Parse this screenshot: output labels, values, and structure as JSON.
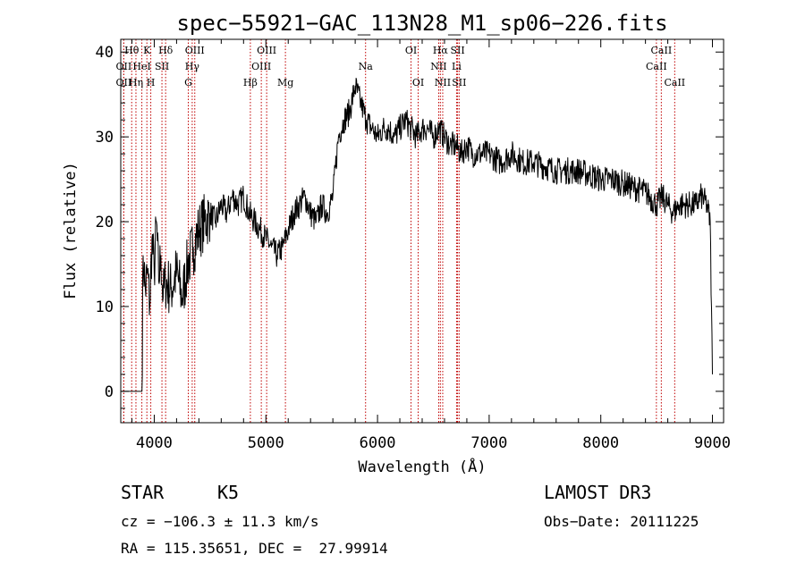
{
  "chart_data": {
    "type": "line",
    "title": "spec−55921−GAC_113N28_M1_sp06−226.fits",
    "xlabel": "Wavelength (Å)",
    "ylabel": "Flux (relative)",
    "xlim": [
      3700,
      9100
    ],
    "ylim": [
      -3.7,
      41.5
    ],
    "xticks": [
      4000,
      5000,
      6000,
      7000,
      8000,
      9000
    ],
    "yticks": [
      0,
      10,
      20,
      30,
      40
    ],
    "grid": false,
    "series": [
      {
        "name": "flux",
        "x": [
          3700,
          3890,
          3900,
          3920,
          3940,
          3960,
          3980,
          4000,
          4020,
          4040,
          4060,
          4080,
          4100,
          4150,
          4200,
          4250,
          4300,
          4350,
          4400,
          4450,
          4500,
          4550,
          4600,
          4650,
          4700,
          4750,
          4800,
          4850,
          4900,
          4950,
          5000,
          5050,
          5100,
          5150,
          5200,
          5250,
          5300,
          5350,
          5400,
          5450,
          5500,
          5550,
          5600,
          5650,
          5700,
          5750,
          5800,
          5850,
          5900,
          5950,
          6000,
          6050,
          6100,
          6150,
          6200,
          6250,
          6300,
          6350,
          6400,
          6450,
          6500,
          6550,
          6600,
          6650,
          6700,
          6750,
          6800,
          6850,
          6900,
          7000,
          7100,
          7200,
          7300,
          7400,
          7500,
          7600,
          7700,
          7800,
          7900,
          8000,
          8100,
          8200,
          8300,
          8400,
          8500,
          8550,
          8600,
          8650,
          8700,
          8750,
          8800,
          8850,
          8900,
          8950,
          8980,
          9000
        ],
        "y": [
          0,
          0,
          16,
          12,
          14,
          10,
          18,
          14,
          20,
          13,
          16,
          11,
          13,
          12,
          14,
          11,
          15,
          17,
          19,
          20,
          21,
          20,
          22,
          21,
          23,
          22,
          23,
          21,
          20,
          19,
          18,
          17,
          16,
          17,
          19,
          21,
          22,
          23,
          21,
          20,
          22,
          21,
          23,
          30,
          32,
          33,
          36,
          34,
          32,
          31,
          30,
          31,
          31,
          30,
          31,
          32,
          31,
          30,
          31,
          31,
          30,
          31,
          30,
          29,
          29,
          28,
          29,
          28,
          28,
          28,
          27,
          28,
          27,
          27,
          26.5,
          26,
          26,
          26,
          25.5,
          25,
          25,
          24.5,
          24,
          23.5,
          22,
          23,
          22,
          21,
          22,
          22,
          22,
          22,
          23,
          22,
          20,
          2
        ]
      }
    ],
    "lines": [
      {
        "label": "Hθ",
        "x": 3798,
        "row": 0
      },
      {
        "label": "OII",
        "x": 3727,
        "row": 1
      },
      {
        "label": "OII",
        "x": 3727,
        "row": 2
      },
      {
        "label": "Hη",
        "x": 3836,
        "row": 2
      },
      {
        "label": "HeI",
        "x": 3889,
        "row": 1
      },
      {
        "label": "K",
        "x": 3934,
        "row": 0
      },
      {
        "label": "H",
        "x": 3969,
        "row": 2
      },
      {
        "label": "SII",
        "x": 4069,
        "row": 1
      },
      {
        "label": "Hδ",
        "x": 4102,
        "row": 0
      },
      {
        "label": "OIII",
        "x": 4363,
        "row": 0
      },
      {
        "label": "Hγ",
        "x": 4340,
        "row": 1
      },
      {
        "label": "G",
        "x": 4305,
        "row": 2
      },
      {
        "label": "Hβ",
        "x": 4861,
        "row": 2
      },
      {
        "label": "OIII",
        "x": 5007,
        "row": 0
      },
      {
        "label": "OIII",
        "x": 4959,
        "row": 1
      },
      {
        "label": "Mg",
        "x": 5175,
        "row": 2
      },
      {
        "label": "Na",
        "x": 5893,
        "row": 1
      },
      {
        "label": "OI",
        "x": 6300,
        "row": 0
      },
      {
        "label": "OI",
        "x": 6364,
        "row": 2
      },
      {
        "label": "Hα",
        "x": 6563,
        "row": 0
      },
      {
        "label": "SII",
        "x": 6717,
        "row": 0
      },
      {
        "label": "NII",
        "x": 6548,
        "row": 1
      },
      {
        "label": "Li",
        "x": 6708,
        "row": 1
      },
      {
        "label": "NII",
        "x": 6584,
        "row": 2
      },
      {
        "label": "SII",
        "x": 6731,
        "row": 2
      },
      {
        "label": "CaII",
        "x": 8542,
        "row": 0
      },
      {
        "label": "CaII",
        "x": 8498,
        "row": 1
      },
      {
        "label": "CaII",
        "x": 8662,
        "row": 2
      }
    ]
  },
  "info": {
    "class_label": "STAR",
    "subclass_label": "K5",
    "survey_label": "LAMOST DR3",
    "cz_text": "cz = −106.3 ± 11.3 km/s",
    "obs_date_text": "Obs−Date: 20111225",
    "coords_text": "RA = 115.35651, DEC =  27.99914"
  }
}
